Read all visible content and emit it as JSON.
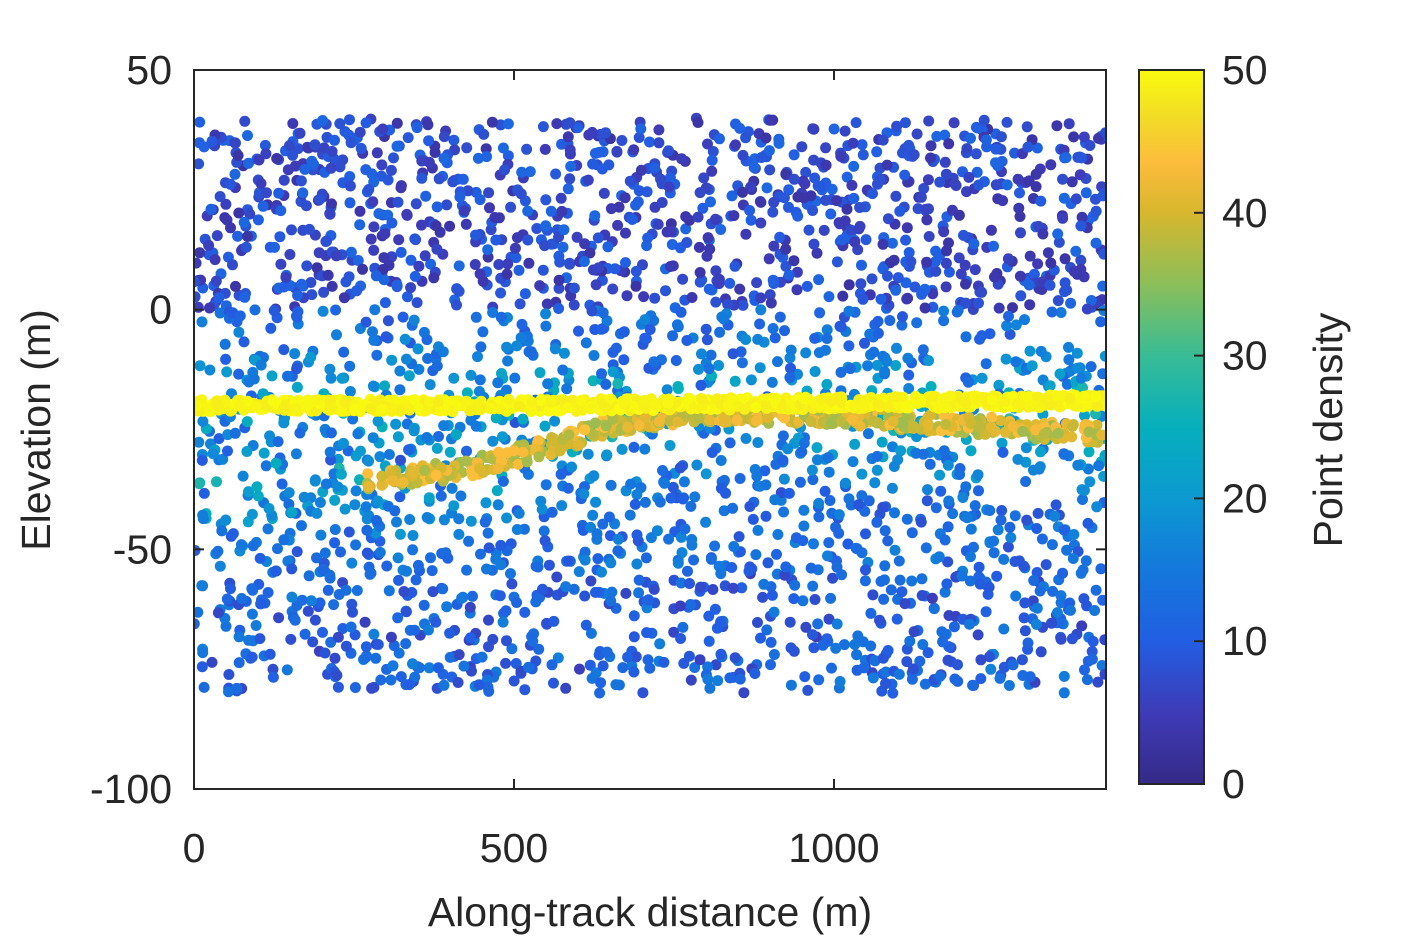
{
  "chart_data": {
    "type": "scatter",
    "title": "",
    "xlabel": "Along-track distance (m)",
    "ylabel": "Elevation (m)",
    "xlim": [
      0,
      1425
    ],
    "ylim": [
      -100,
      50
    ],
    "x_ticks": [
      0,
      500,
      1000
    ],
    "y_ticks": [
      -100,
      -50,
      0,
      50
    ],
    "x_tick_labels": [
      "0",
      "500",
      "1000"
    ],
    "y_tick_labels": [
      "-100",
      "-50",
      "0",
      "50"
    ],
    "grid": false,
    "colorbar": {
      "label": "Point density",
      "range": [
        0,
        50
      ],
      "ticks": [
        0,
        10,
        20,
        30,
        40,
        50
      ],
      "tick_labels": [
        "0",
        "10",
        "20",
        "30",
        "40",
        "50"
      ],
      "colormap": "parula",
      "placement": "right"
    },
    "features": [
      {
        "name": "surface",
        "points": [
          [
            0,
            -20
          ],
          [
            500,
            -20
          ],
          [
            1000,
            -19.5
          ],
          [
            1425,
            -19
          ]
        ],
        "density": 50
      },
      {
        "name": "subsurface",
        "points": [
          [
            270,
            -36
          ],
          [
            430,
            -33
          ],
          [
            560,
            -28.5
          ],
          [
            650,
            -24
          ],
          [
            780,
            -21.5
          ],
          [
            1000,
            -22
          ],
          [
            1200,
            -24
          ],
          [
            1425,
            -26
          ]
        ],
        "density": 42
      }
    ],
    "background_noise": {
      "x_range": [
        0,
        1425
      ],
      "upper_band": {
        "y_range": [
          0,
          40
        ],
        "density_range": [
          3,
          12
        ]
      },
      "lower_band": {
        "y_range": [
          -80,
          0
        ],
        "density_range": [
          8,
          30
        ]
      }
    }
  }
}
